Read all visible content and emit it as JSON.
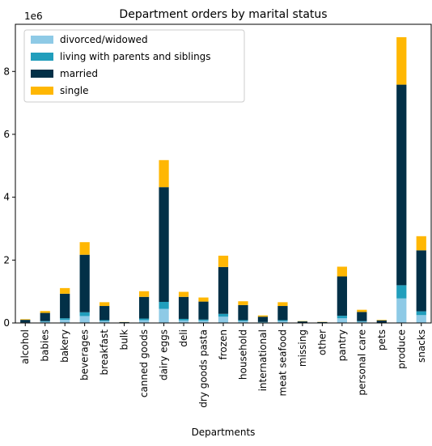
{
  "chart_data": {
    "type": "bar",
    "stacked": true,
    "title": "Department orders by marital status",
    "xlabel": "Departments",
    "ylabel": "",
    "y_scale_label": "1e6",
    "ylim": [
      0,
      9.5
    ],
    "yticks": [
      0,
      2,
      4,
      6,
      8
    ],
    "legend_position": "upper-left",
    "categories": [
      "alcohol",
      "babies",
      "bakery",
      "beverages",
      "breakfast",
      "bulk",
      "canned goods",
      "dairy eggs",
      "deli",
      "dry goods pasta",
      "frozen",
      "household",
      "international",
      "meat seafood",
      "missing",
      "other",
      "pantry",
      "personal care",
      "pets",
      "produce",
      "snacks"
    ],
    "series": [
      {
        "name": "divorced/widowed",
        "color": "#8ecae6",
        "values": [
          0.01,
          0.04,
          0.1,
          0.22,
          0.06,
          0.003,
          0.09,
          0.45,
          0.08,
          0.07,
          0.2,
          0.06,
          0.02,
          0.06,
          0.006,
          0.003,
          0.15,
          0.04,
          0.008,
          0.78,
          0.25
        ]
      },
      {
        "name": "living with parents and siblings",
        "color": "#219ebc",
        "values": [
          0.005,
          0.02,
          0.05,
          0.12,
          0.03,
          0.002,
          0.05,
          0.22,
          0.05,
          0.04,
          0.09,
          0.03,
          0.01,
          0.03,
          0.003,
          0.002,
          0.08,
          0.02,
          0.005,
          0.42,
          0.12
        ]
      },
      {
        "name": "married",
        "color": "#023047",
        "values": [
          0.085,
          0.26,
          0.78,
          1.83,
          0.45,
          0.02,
          0.69,
          3.65,
          0.7,
          0.57,
          1.49,
          0.48,
          0.17,
          0.45,
          0.041,
          0.025,
          1.25,
          0.29,
          0.07,
          6.38,
          1.94
        ]
      },
      {
        "name": "single",
        "color": "#ffb703",
        "values": [
          0.02,
          0.06,
          0.18,
          0.4,
          0.12,
          0.005,
          0.18,
          0.86,
          0.16,
          0.13,
          0.36,
          0.12,
          0.04,
          0.12,
          0.01,
          0.006,
          0.31,
          0.07,
          0.017,
          1.51,
          0.45
        ]
      }
    ]
  }
}
